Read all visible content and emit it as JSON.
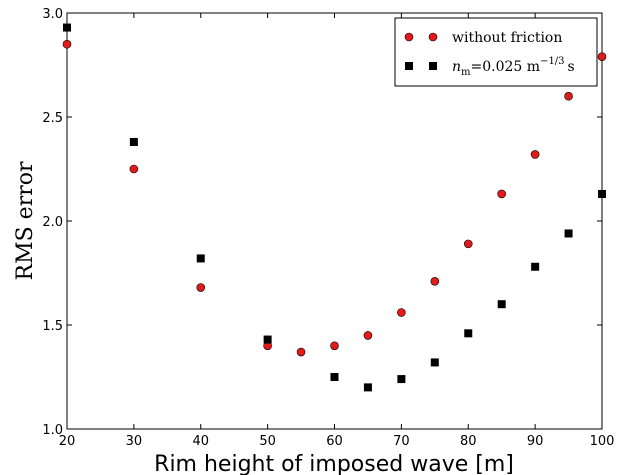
{
  "chart_data": {
    "type": "scatter",
    "title": "",
    "xlabel": "Rim height of imposed wave [m]",
    "ylabel": "RMS error",
    "xlim": [
      20,
      100
    ],
    "ylim": [
      1.0,
      3.0
    ],
    "xticks": [
      "20",
      "30",
      "40",
      "50",
      "60",
      "70",
      "80",
      "90",
      "100"
    ],
    "yticks": [
      "1.0",
      "1.5",
      "2.0",
      "2.5",
      "3.0"
    ],
    "grid": false,
    "legend_position": "top-right",
    "series": [
      {
        "name": "without friction",
        "marker": "circle",
        "color": "#e31a1c",
        "x": [
          20,
          30,
          40,
          50,
          55,
          60,
          65,
          70,
          75,
          80,
          85,
          90,
          95,
          100
        ],
        "y": [
          2.85,
          2.25,
          1.68,
          1.4,
          1.37,
          1.4,
          1.45,
          1.56,
          1.71,
          1.89,
          2.13,
          2.32,
          2.6,
          2.79
        ]
      },
      {
        "name": "n_m=0.025 m^-1/3 s",
        "marker": "square",
        "color": "#000000",
        "x": [
          20,
          30,
          40,
          50,
          60,
          65,
          70,
          75,
          80,
          85,
          90,
          95,
          100
        ],
        "y": [
          2.93,
          2.38,
          1.82,
          1.43,
          1.25,
          1.2,
          1.24,
          1.32,
          1.46,
          1.6,
          1.78,
          1.94,
          2.13
        ]
      }
    ]
  },
  "legend": {
    "entry1": "without friction",
    "entry2_var": "n",
    "entry2_sub": "m",
    "entry2_eq": "=0.025 m",
    "entry2_sup": "−1/3",
    "entry2_unit": "s"
  }
}
